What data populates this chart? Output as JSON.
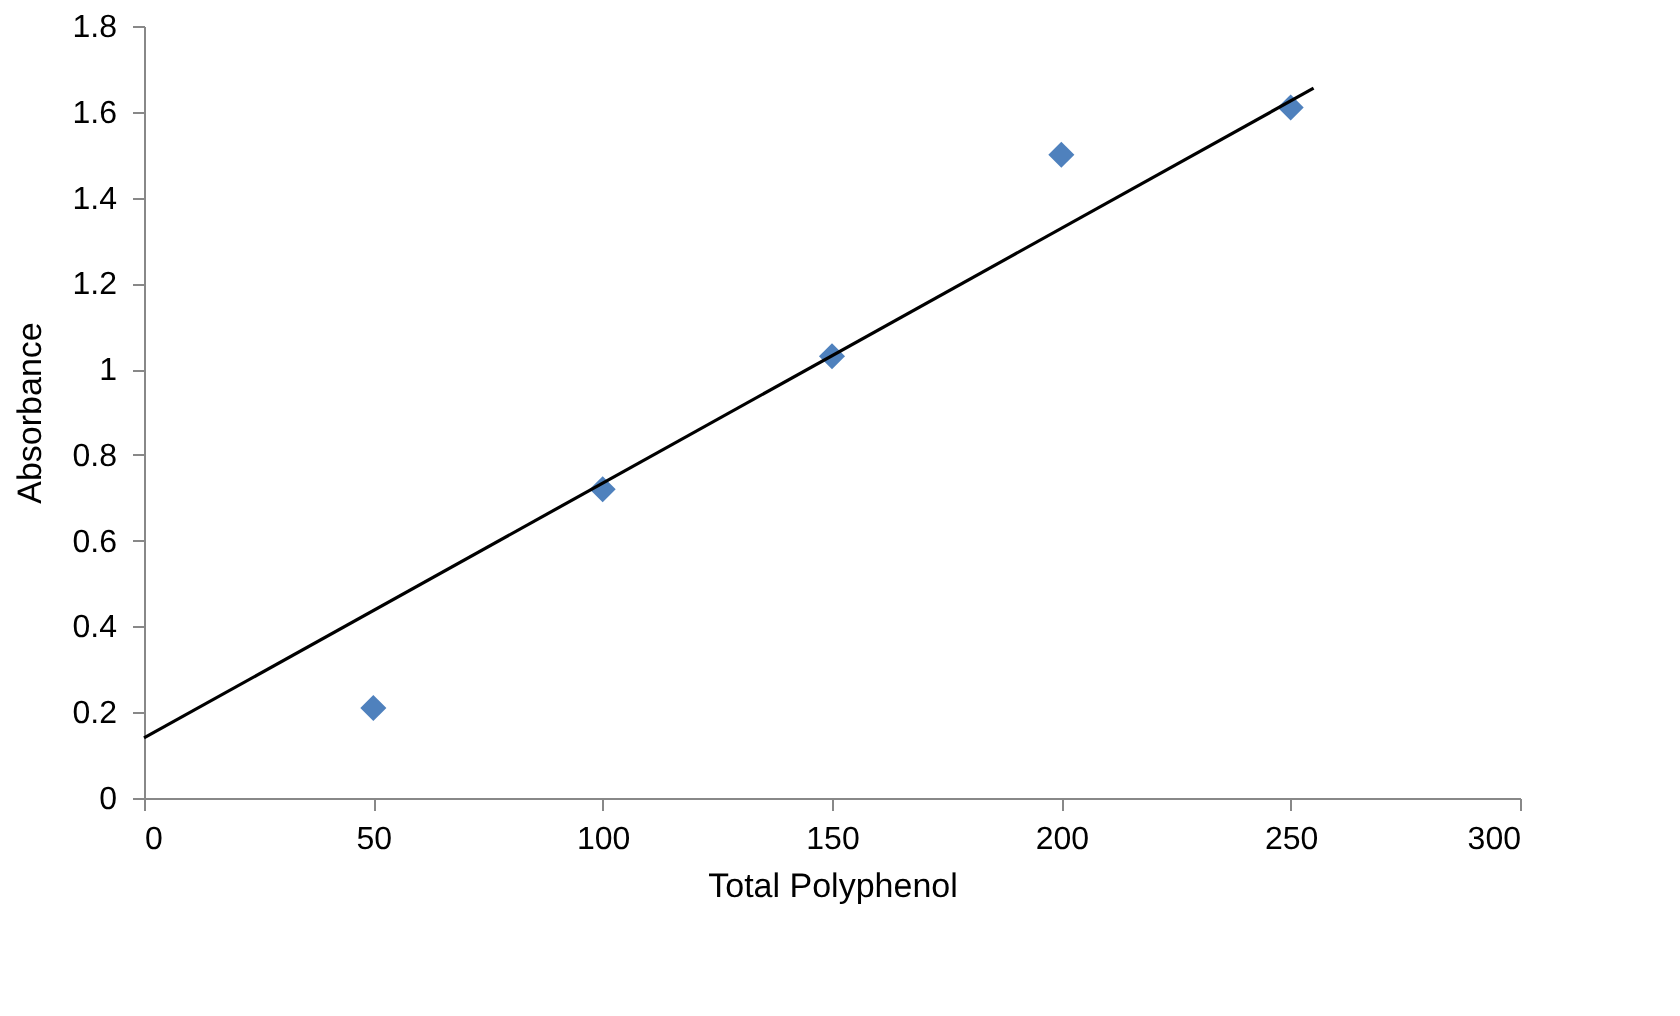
{
  "chart_data": {
    "type": "scatter",
    "xlabel": "Total Polyphenol",
    "ylabel": "Absorbance",
    "x": [
      50,
      100,
      150,
      200,
      250
    ],
    "series": [
      {
        "color": "#4f81bd",
        "marker": "diamond",
        "values": [
          0.21,
          0.72,
          1.03,
          1.5,
          1.61
        ]
      },
      {
        "type": "line",
        "color": "#000000",
        "marker": "none",
        "x": [
          0,
          255
        ],
        "values": [
          0.14,
          1.655
        ]
      }
    ],
    "xlim": [
      0,
      300
    ],
    "xticks": [
      0,
      50,
      100,
      150,
      200,
      250,
      300
    ],
    "ylim": [
      0,
      1.8
    ],
    "yticks": [
      0,
      0.2,
      0.4,
      0.6,
      0.8,
      1,
      1.2,
      1.4,
      1.6,
      1.8
    ],
    "grid": false
  }
}
